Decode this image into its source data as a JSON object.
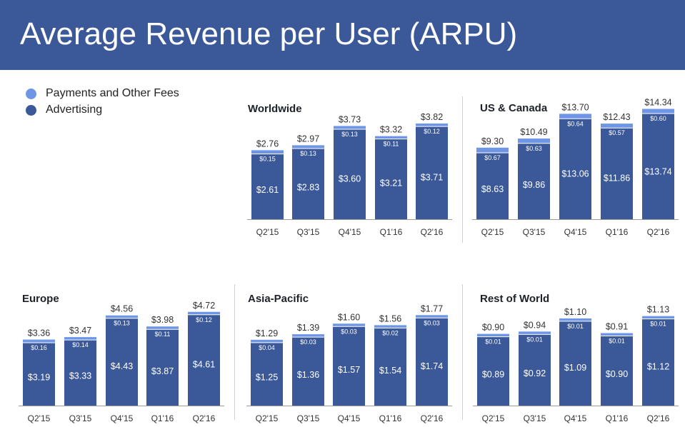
{
  "title": "Average Revenue per User (ARPU)",
  "legend": [
    {
      "label": "Payments and Other Fees",
      "color": "#6f96e6"
    },
    {
      "label": "Advertising",
      "color": "#3b5998"
    }
  ],
  "colors": {
    "advertising": "#3b5998",
    "payments": "#6f96e6",
    "header": "#3b5998"
  },
  "chart_data": [
    {
      "type": "bar",
      "stacked": true,
      "title": "Worldwide",
      "categories": [
        "Q2'15",
        "Q3'15",
        "Q4'15",
        "Q1'16",
        "Q2'16"
      ],
      "series": [
        {
          "name": "Advertising",
          "values": [
            2.61,
            2.83,
            3.6,
            3.21,
            3.71
          ],
          "labels": [
            "$2.61",
            "$2.83",
            "$3.60",
            "$3.21",
            "$3.71"
          ]
        },
        {
          "name": "Payments and Other Fees",
          "values": [
            0.15,
            0.13,
            0.13,
            0.11,
            0.12
          ],
          "labels": [
            "$0.15",
            "$0.13",
            "$0.13",
            "$0.11",
            "$0.12"
          ]
        }
      ],
      "totals": [
        "$2.76",
        "$2.97",
        "$3.73",
        "$3.32",
        "$3.82"
      ],
      "ylim": [
        0,
        4.2
      ]
    },
    {
      "type": "bar",
      "stacked": true,
      "title": "US & Canada",
      "categories": [
        "Q2'15",
        "Q3'15",
        "Q4'15",
        "Q1'16",
        "Q2'16"
      ],
      "series": [
        {
          "name": "Advertising",
          "values": [
            8.63,
            9.86,
            13.06,
            11.86,
            13.74
          ],
          "labels": [
            "$8.63",
            "$9.86",
            "$13.06",
            "$11.86",
            "$13.74"
          ]
        },
        {
          "name": "Payments and Other Fees",
          "values": [
            0.67,
            0.63,
            0.64,
            0.57,
            0.6
          ],
          "labels": [
            "$0.67",
            "$0.63",
            "$0.64",
            "$0.57",
            "$0.60"
          ]
        }
      ],
      "totals": [
        "$9.30",
        "$10.49",
        "$13.70",
        "$12.43",
        "$14.34"
      ],
      "ylim": [
        0,
        15.5
      ]
    },
    {
      "type": "bar",
      "stacked": true,
      "title": "Europe",
      "categories": [
        "Q2'15",
        "Q3'15",
        "Q4'15",
        "Q1'16",
        "Q2'16"
      ],
      "series": [
        {
          "name": "Advertising",
          "values": [
            3.19,
            3.33,
            4.43,
            3.87,
            4.61
          ],
          "labels": [
            "$3.19",
            "$3.33",
            "$4.43",
            "$3.87",
            "$4.61"
          ]
        },
        {
          "name": "Payments and Other Fees",
          "values": [
            0.16,
            0.14,
            0.13,
            0.11,
            0.12
          ],
          "labels": [
            "$0.16",
            "$0.14",
            "$0.13",
            "$0.11",
            "$0.12"
          ]
        }
      ],
      "totals": [
        "$3.36",
        "$3.47",
        "$4.56",
        "$3.98",
        "$4.72"
      ],
      "ylim": [
        0,
        5.0
      ]
    },
    {
      "type": "bar",
      "stacked": true,
      "title": "Asia-Pacific",
      "categories": [
        "Q2'15",
        "Q3'15",
        "Q4'15",
        "Q1'16",
        "Q2'16"
      ],
      "series": [
        {
          "name": "Advertising",
          "values": [
            1.25,
            1.36,
            1.57,
            1.54,
            1.74
          ],
          "labels": [
            "$1.25",
            "$1.36",
            "$1.57",
            "$1.54",
            "$1.74"
          ]
        },
        {
          "name": "Payments and Other Fees",
          "values": [
            0.04,
            0.03,
            0.03,
            0.02,
            0.03
          ],
          "labels": [
            "$0.04",
            "$0.03",
            "$0.03",
            "$0.02",
            "$0.03"
          ]
        }
      ],
      "totals": [
        "$1.29",
        "$1.39",
        "$1.60",
        "$1.56",
        "$1.77"
      ],
      "ylim": [
        0,
        1.9
      ]
    },
    {
      "type": "bar",
      "stacked": true,
      "title": "Rest of World",
      "categories": [
        "Q2'15",
        "Q3'15",
        "Q4'15",
        "Q1'16",
        "Q2'16"
      ],
      "series": [
        {
          "name": "Advertising",
          "values": [
            0.89,
            0.92,
            1.09,
            0.9,
            1.12
          ],
          "labels": [
            "$0.89",
            "$0.92",
            "$1.09",
            "$0.90",
            "$1.12"
          ]
        },
        {
          "name": "Payments and Other Fees",
          "values": [
            0.01,
            0.01,
            0.01,
            0.01,
            0.01
          ],
          "labels": [
            "$0.01",
            "$0.01",
            "$0.01",
            "$0.01",
            "$0.01"
          ]
        }
      ],
      "totals": [
        "$0.90",
        "$0.94",
        "$1.10",
        "$0.91",
        "$1.13"
      ],
      "ylim": [
        0,
        1.2
      ]
    }
  ]
}
